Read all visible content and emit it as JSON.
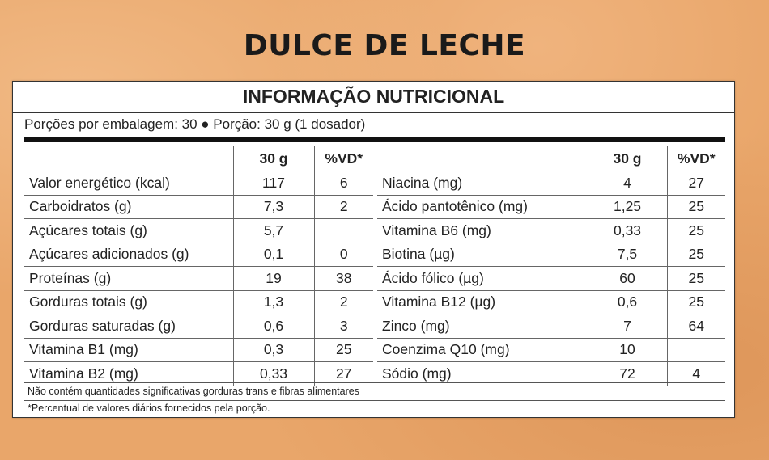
{
  "title": "DULCE DE LECHE",
  "label_title": "INFORMAÇÃO NUTRICIONAL",
  "portions": "Porções por embalagem: 30 ● Porção: 30 g (1 dosador)",
  "columns": {
    "amount": "30 g",
    "dv": "%VD*"
  },
  "left_rows": [
    {
      "name": "Valor energético (kcal)",
      "amount": "117",
      "dv": "6"
    },
    {
      "name": "Carboidratos (g)",
      "amount": "7,3",
      "dv": "2"
    },
    {
      "name": "Açúcares totais (g)",
      "amount": "5,7",
      "dv": ""
    },
    {
      "name": "Açúcares adicionados (g)",
      "amount": "0,1",
      "dv": "0"
    },
    {
      "name": "Proteínas (g)",
      "amount": "19",
      "dv": "38"
    },
    {
      "name": "Gorduras totais (g)",
      "amount": "1,3",
      "dv": "2"
    },
    {
      "name": "Gorduras saturadas (g)",
      "amount": "0,6",
      "dv": "3"
    },
    {
      "name": "Vitamina B1 (mg)",
      "amount": "0,3",
      "dv": "25"
    },
    {
      "name": "Vitamina B2 (mg)",
      "amount": "0,33",
      "dv": "27"
    }
  ],
  "right_rows": [
    {
      "name": "Niacina (mg)",
      "amount": "4",
      "dv": "27"
    },
    {
      "name": "Ácido pantotênico (mg)",
      "amount": "1,25",
      "dv": "25"
    },
    {
      "name": "Vitamina B6 (mg)",
      "amount": "0,33",
      "dv": "25"
    },
    {
      "name": "Biotina (µg)",
      "amount": "7,5",
      "dv": "25"
    },
    {
      "name": "Ácido fólico (µg)",
      "amount": "60",
      "dv": "25"
    },
    {
      "name": "Vitamina B12 (µg)",
      "amount": "0,6",
      "dv": "25"
    },
    {
      "name": "Zinco (mg)",
      "amount": "7",
      "dv": "64"
    },
    {
      "name": "Coenzima Q10 (mg)",
      "amount": "10",
      "dv": ""
    },
    {
      "name": "Sódio (mg)",
      "amount": "72",
      "dv": "4"
    }
  ],
  "footnote1": "Não contém quantidades significativas gorduras trans e fibras alimentares",
  "footnote2": "*Percentual de valores diários fornecidos pela porção.",
  "colors": {
    "background": "#e9a66a",
    "panel": "#ffffff",
    "text": "#222222"
  }
}
